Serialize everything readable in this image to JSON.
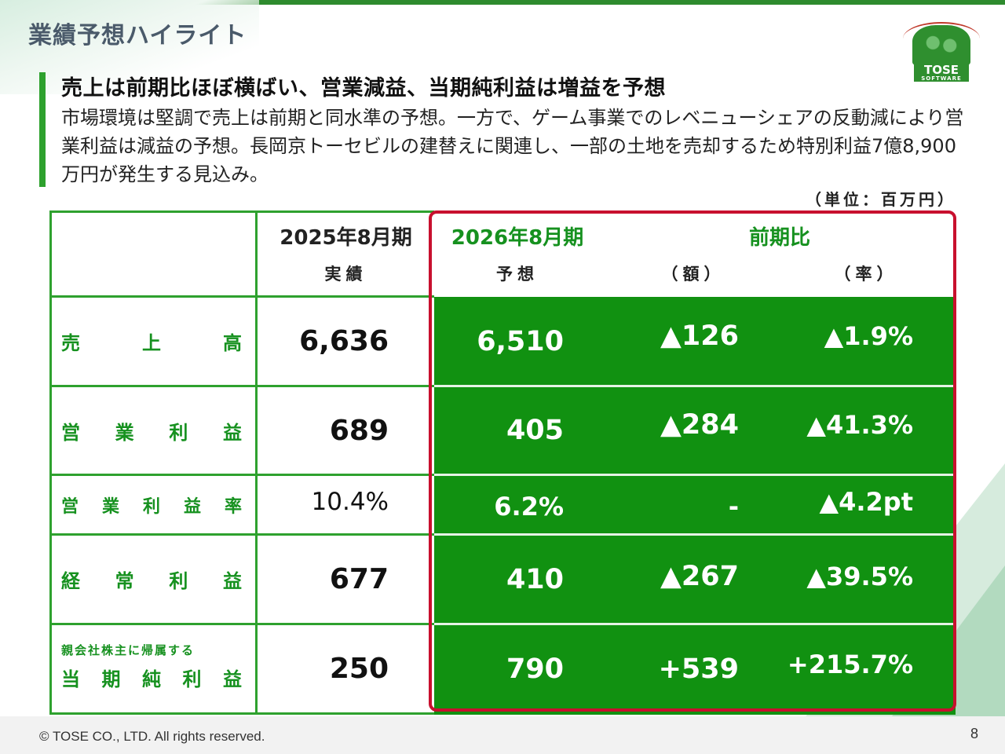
{
  "page": {
    "title": "業績予想ハイライト",
    "headline": "売上は前期比ほぼ横ばい、営業減益、当期純利益は増益を予想",
    "description": "市場環境は堅調で売上は前期と同水準の予想。一方で、ゲーム事業でのレベニューシェアの反動減により営業利益は減益の予想。長岡京トーセビルの建替えに関連し、一部の土地を売却するため特別利益7億8,900万円が発生する見込み。",
    "unit": "（単位：百万円）",
    "copyright": "© TOSE CO., LTD. All rights reserved.",
    "page_number": "8"
  },
  "logo": {
    "name": "TOSE",
    "sub": "SOFTWARE"
  },
  "colors": {
    "accent_green": "#119111",
    "label_green": "#16911f",
    "highlight_red": "#c8102e"
  },
  "table": {
    "header": {
      "prev_period": "2025年8月期",
      "prev_sub": "実績",
      "curr_period": "2026年8月期",
      "curr_sub": "予想",
      "compare": "前期比",
      "compare_amount": "（額）",
      "compare_rate": "（率）"
    },
    "rows": [
      {
        "label_chars": [
          "売",
          "上",
          "高"
        ],
        "actual": "6,636",
        "forecast": "6,510",
        "diff": "▲126",
        "rate": "▲1.9%"
      },
      {
        "label_chars": [
          "営",
          "業",
          "利",
          "益"
        ],
        "actual": "689",
        "forecast": "405",
        "diff": "▲284",
        "rate": "▲41.3%"
      },
      {
        "label_chars": [
          "営",
          "業",
          "利",
          "益",
          "率"
        ],
        "actual": "10.4%",
        "forecast": "6.2%",
        "diff": "-",
        "rate": "▲4.2pt"
      },
      {
        "label_chars": [
          "経",
          "常",
          "利",
          "益"
        ],
        "actual": "677",
        "forecast": "410",
        "diff": "▲267",
        "rate": "▲39.5%"
      },
      {
        "label_top": "親会社株主に帰属する",
        "label_chars": [
          "当",
          "期",
          "純",
          "利",
          "益"
        ],
        "actual": "250",
        "forecast": "790",
        "diff": "+539",
        "rate": "+215.7%"
      }
    ]
  }
}
